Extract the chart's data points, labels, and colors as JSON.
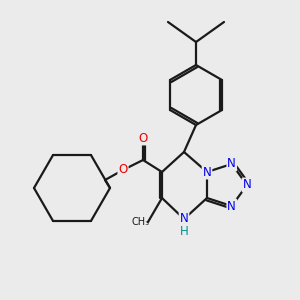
{
  "bg": "#ebebeb",
  "bc": "#1a1a1a",
  "Nc": "#0000ee",
  "Oc": "#ee0000",
  "Hc": "#009090",
  "lw": 1.6,
  "fs": 8.5,
  "xlim": [
    0,
    10
  ],
  "ylim": [
    0,
    10
  ]
}
